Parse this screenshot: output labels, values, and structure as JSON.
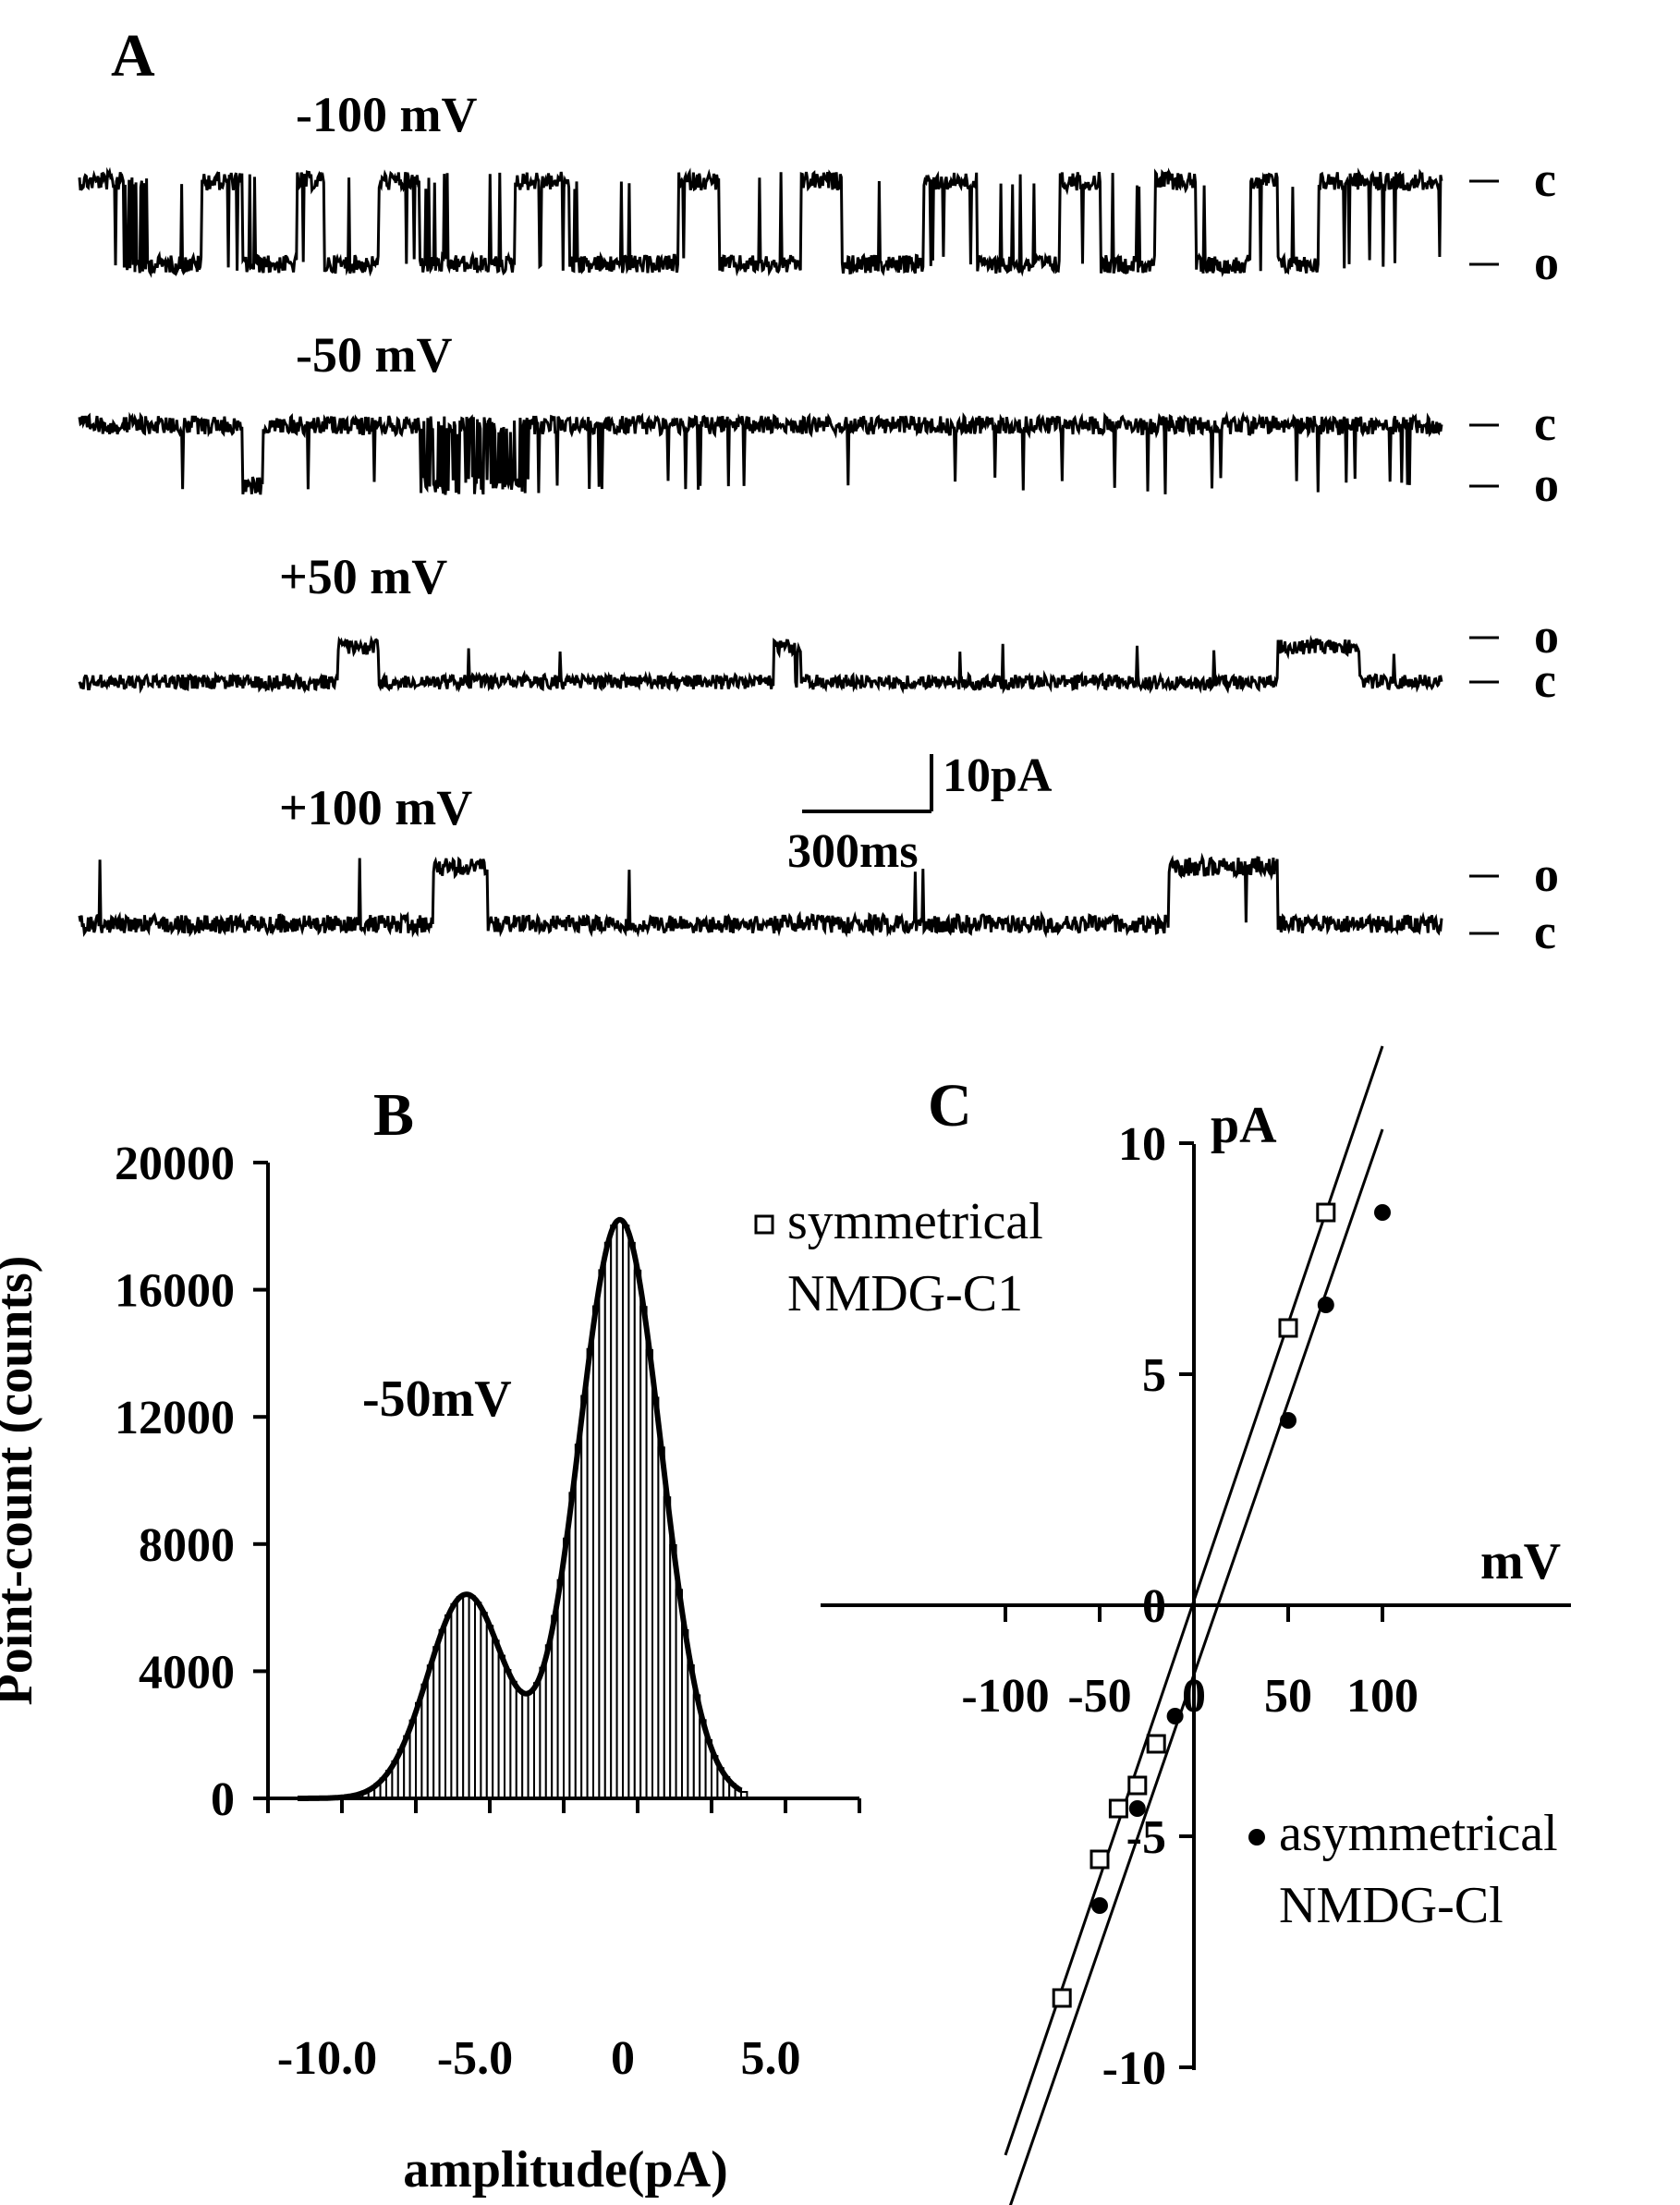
{
  "panelA": {
    "letter": "A",
    "traces": [
      {
        "voltage": "-100 mV",
        "upper_state": "c",
        "lower_state": "o"
      },
      {
        "voltage": "-50 mV",
        "upper_state": "c",
        "lower_state": "o"
      },
      {
        "voltage": "+50 mV",
        "upper_state": "o",
        "lower_state": "c"
      },
      {
        "voltage": "+100 mV",
        "upper_state": "o",
        "lower_state": "c"
      }
    ],
    "scalebar": {
      "current": "10pA",
      "time": "300ms"
    }
  },
  "chart_data": [
    {
      "panel": "B",
      "type": "bar",
      "title": "B",
      "annotation": "-50mV",
      "xlabel": "amplitude(pA)",
      "ylabel": "Point-count (counts)",
      "xlim": [
        -12,
        8
      ],
      "ylim": [
        0,
        20000
      ],
      "xticks": [
        -10.0,
        -5.0,
        0,
        5.0
      ],
      "xtick_labels": [
        "-10.0",
        "-5.0",
        "0",
        "5.0"
      ],
      "yticks": [
        0,
        4000,
        8000,
        12000,
        16000,
        20000
      ],
      "ytick_labels": [
        "0",
        "4000",
        "8000",
        "12000",
        "16000",
        "20000"
      ],
      "bin_width": 0.2,
      "gaussian_fit": [
        {
          "mean": -5.3,
          "sd": 1.3,
          "peak": 6400
        },
        {
          "mean": -0.1,
          "sd": 1.4,
          "peak": 18200
        }
      ]
    },
    {
      "panel": "C",
      "type": "scatter",
      "title": "C",
      "xlabel": "mV",
      "ylabel": "pA",
      "xlim": [
        -100,
        100
      ],
      "ylim": [
        -10,
        10
      ],
      "xticks": [
        -100,
        -50,
        0,
        50,
        100
      ],
      "xtick_labels": [
        "-100",
        "-50",
        "0",
        "50",
        "100"
      ],
      "yticks": [
        -10,
        -5,
        0,
        5,
        10
      ],
      "ytick_labels": [
        "-10",
        "-5",
        "0",
        "5",
        "10"
      ],
      "series": [
        {
          "name": "symmetrical NMDG-C1",
          "legend_lines": [
            "symmetrical",
            "NMDG-C1"
          ],
          "marker": "open-square",
          "x": [
            -70,
            -50,
            -40,
            -30,
            -20,
            50,
            70
          ],
          "y": [
            -8.5,
            -5.5,
            -4.4,
            -3.9,
            -3.0,
            6.0,
            8.5
          ],
          "fit": {
            "slope": 0.12,
            "intercept": 0.1
          }
        },
        {
          "name": "asymmetrical NMDG-Cl",
          "legend_lines": [
            "asymmetrical",
            "NMDG-Cl"
          ],
          "marker": "filled-circle",
          "x": [
            -50,
            -30,
            -10,
            50,
            70,
            100
          ],
          "y": [
            -6.5,
            -4.4,
            -2.4,
            4.0,
            6.5,
            8.5
          ],
          "fit": {
            "slope": 0.118,
            "intercept": -1.5
          }
        }
      ]
    }
  ]
}
